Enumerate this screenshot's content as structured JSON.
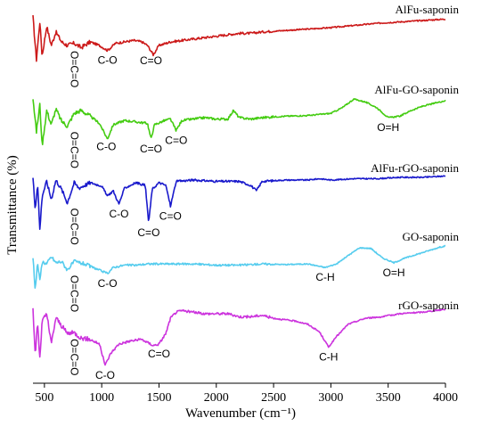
{
  "chart_data": {
    "type": "line",
    "xlabel": "Wavenumber (cm⁻¹)",
    "ylabel": "Transmittance (%)",
    "xlim": [
      400,
      4000
    ],
    "x_ticks": [
      500,
      1000,
      1500,
      2000,
      2500,
      3000,
      3500,
      4000
    ],
    "y_ticks": "none",
    "series": [
      {
        "name": "AlFu-saponin",
        "color": "#cc1a1a",
        "points": [
          [
            400,
            95
          ],
          [
            430,
            35
          ],
          [
            460,
            88
          ],
          [
            480,
            40
          ],
          [
            520,
            82
          ],
          [
            560,
            55
          ],
          [
            600,
            74
          ],
          [
            650,
            60
          ],
          [
            700,
            55
          ],
          [
            760,
            58
          ],
          [
            820,
            52
          ],
          [
            900,
            60
          ],
          [
            980,
            55
          ],
          [
            1050,
            48
          ],
          [
            1080,
            52
          ],
          [
            1120,
            58
          ],
          [
            1200,
            60
          ],
          [
            1280,
            62
          ],
          [
            1350,
            60
          ],
          [
            1400,
            55
          ],
          [
            1450,
            42
          ],
          [
            1500,
            55
          ],
          [
            1600,
            60
          ],
          [
            1700,
            62
          ],
          [
            1800,
            64
          ],
          [
            1900,
            66
          ],
          [
            2000,
            68
          ],
          [
            2100,
            70
          ],
          [
            2200,
            72
          ],
          [
            2300,
            72
          ],
          [
            2400,
            74
          ],
          [
            2600,
            76
          ],
          [
            2800,
            78
          ],
          [
            3000,
            80
          ],
          [
            3200,
            83
          ],
          [
            3400,
            86
          ],
          [
            3600,
            88
          ],
          [
            3800,
            90
          ],
          [
            4000,
            92
          ]
        ]
      },
      {
        "name": "AlFu-GO-saponin",
        "color": "#44cc11",
        "points": [
          [
            400,
            88
          ],
          [
            430,
            40
          ],
          [
            460,
            78
          ],
          [
            480,
            20
          ],
          [
            520,
            70
          ],
          [
            560,
            50
          ],
          [
            600,
            72
          ],
          [
            650,
            55
          ],
          [
            700,
            48
          ],
          [
            760,
            66
          ],
          [
            820,
            70
          ],
          [
            900,
            62
          ],
          [
            980,
            52
          ],
          [
            1050,
            30
          ],
          [
            1100,
            50
          ],
          [
            1200,
            56
          ],
          [
            1300,
            54
          ],
          [
            1400,
            52
          ],
          [
            1430,
            30
          ],
          [
            1460,
            50
          ],
          [
            1550,
            56
          ],
          [
            1600,
            58
          ],
          [
            1650,
            42
          ],
          [
            1700,
            56
          ],
          [
            1800,
            58
          ],
          [
            1900,
            60
          ],
          [
            2000,
            58
          ],
          [
            2100,
            58
          ],
          [
            2150,
            70
          ],
          [
            2200,
            60
          ],
          [
            2300,
            58
          ],
          [
            2400,
            60
          ],
          [
            2600,
            62
          ],
          [
            2800,
            63
          ],
          [
            3000,
            66
          ],
          [
            3100,
            74
          ],
          [
            3200,
            86
          ],
          [
            3300,
            82
          ],
          [
            3400,
            74
          ],
          [
            3500,
            60
          ],
          [
            3600,
            62
          ],
          [
            3700,
            70
          ],
          [
            3800,
            76
          ],
          [
            3900,
            80
          ],
          [
            4000,
            84
          ]
        ]
      },
      {
        "name": "AlFu-rGO-saponin",
        "color": "#1a1acc",
        "points": [
          [
            400,
            88
          ],
          [
            420,
            40
          ],
          [
            440,
            80
          ],
          [
            460,
            10
          ],
          [
            480,
            60
          ],
          [
            520,
            82
          ],
          [
            560,
            55
          ],
          [
            600,
            84
          ],
          [
            650,
            70
          ],
          [
            700,
            50
          ],
          [
            760,
            80
          ],
          [
            800,
            72
          ],
          [
            900,
            80
          ],
          [
            1000,
            75
          ],
          [
            1050,
            60
          ],
          [
            1100,
            68
          ],
          [
            1150,
            48
          ],
          [
            1200,
            72
          ],
          [
            1300,
            80
          ],
          [
            1380,
            76
          ],
          [
            1410,
            20
          ],
          [
            1440,
            70
          ],
          [
            1500,
            80
          ],
          [
            1560,
            76
          ],
          [
            1600,
            45
          ],
          [
            1650,
            82
          ],
          [
            1800,
            84
          ],
          [
            2000,
            82
          ],
          [
            2200,
            82
          ],
          [
            2300,
            76
          ],
          [
            2350,
            68
          ],
          [
            2400,
            82
          ],
          [
            2600,
            84
          ],
          [
            2800,
            84
          ],
          [
            2900,
            86
          ],
          [
            3000,
            84
          ],
          [
            3200,
            86
          ],
          [
            3400,
            86
          ],
          [
            3600,
            88
          ],
          [
            3800,
            88
          ],
          [
            4000,
            90
          ]
        ]
      },
      {
        "name": "GO-saponin",
        "color": "#55ccee",
        "points": [
          [
            400,
            70
          ],
          [
            420,
            15
          ],
          [
            440,
            60
          ],
          [
            460,
            30
          ],
          [
            480,
            62
          ],
          [
            520,
            58
          ],
          [
            560,
            70
          ],
          [
            600,
            60
          ],
          [
            650,
            62
          ],
          [
            700,
            48
          ],
          [
            760,
            62
          ],
          [
            850,
            58
          ],
          [
            950,
            50
          ],
          [
            1050,
            42
          ],
          [
            1100,
            52
          ],
          [
            1200,
            56
          ],
          [
            1300,
            56
          ],
          [
            1400,
            58
          ],
          [
            1600,
            58
          ],
          [
            1800,
            58
          ],
          [
            2000,
            56
          ],
          [
            2200,
            56
          ],
          [
            2400,
            58
          ],
          [
            2600,
            57
          ],
          [
            2800,
            58
          ],
          [
            2950,
            52
          ],
          [
            3050,
            58
          ],
          [
            3150,
            72
          ],
          [
            3250,
            85
          ],
          [
            3350,
            84
          ],
          [
            3450,
            68
          ],
          [
            3550,
            60
          ],
          [
            3650,
            68
          ],
          [
            3750,
            74
          ],
          [
            3850,
            80
          ],
          [
            3950,
            86
          ],
          [
            4000,
            88
          ]
        ]
      },
      {
        "name": "rGO-saponin",
        "color": "#cc33dd",
        "points": [
          [
            400,
            85
          ],
          [
            420,
            25
          ],
          [
            440,
            70
          ],
          [
            460,
            20
          ],
          [
            480,
            70
          ],
          [
            520,
            80
          ],
          [
            560,
            40
          ],
          [
            600,
            75
          ],
          [
            650,
            64
          ],
          [
            700,
            54
          ],
          [
            760,
            55
          ],
          [
            820,
            48
          ],
          [
            900,
            46
          ],
          [
            980,
            40
          ],
          [
            1030,
            12
          ],
          [
            1080,
            28
          ],
          [
            1150,
            40
          ],
          [
            1250,
            44
          ],
          [
            1350,
            46
          ],
          [
            1450,
            38
          ],
          [
            1500,
            40
          ],
          [
            1560,
            54
          ],
          [
            1600,
            74
          ],
          [
            1650,
            82
          ],
          [
            1700,
            84
          ],
          [
            1800,
            82
          ],
          [
            1900,
            80
          ],
          [
            2000,
            80
          ],
          [
            2100,
            80
          ],
          [
            2200,
            76
          ],
          [
            2300,
            76
          ],
          [
            2400,
            78
          ],
          [
            2500,
            74
          ],
          [
            2600,
            72
          ],
          [
            2700,
            70
          ],
          [
            2800,
            66
          ],
          [
            2900,
            56
          ],
          [
            2980,
            36
          ],
          [
            3050,
            50
          ],
          [
            3150,
            66
          ],
          [
            3300,
            74
          ],
          [
            3450,
            76
          ],
          [
            3600,
            80
          ],
          [
            3800,
            82
          ],
          [
            4000,
            86
          ]
        ]
      }
    ],
    "annotations": [
      {
        "text": "O=C=O",
        "series": 0,
        "x": 700
      },
      {
        "text": "C-O",
        "series": 0,
        "x": 1050
      },
      {
        "text": "C=O",
        "series": 0,
        "x": 1430
      },
      {
        "text": "O=C=O",
        "series": 1,
        "x": 700
      },
      {
        "text": "C-O",
        "series": 1,
        "x": 1040
      },
      {
        "text": "C=O",
        "series": 1,
        "x": 1430
      },
      {
        "text": "C=O",
        "series": 1,
        "x": 1650
      },
      {
        "text": "O=H",
        "series": 1,
        "x": 3500
      },
      {
        "text": "O=C=O",
        "series": 2,
        "x": 700
      },
      {
        "text": "C-O",
        "series": 2,
        "x": 1150
      },
      {
        "text": "C=O",
        "series": 2,
        "x": 1410
      },
      {
        "text": "C=O",
        "series": 2,
        "x": 1600
      },
      {
        "text": "O=C=O",
        "series": 3,
        "x": 700
      },
      {
        "text": "C-O",
        "series": 3,
        "x": 1050
      },
      {
        "text": "C-H",
        "series": 3,
        "x": 2950
      },
      {
        "text": "O=H",
        "series": 3,
        "x": 3550
      },
      {
        "text": "O=C=O",
        "series": 4,
        "x": 700
      },
      {
        "text": "C-O",
        "series": 4,
        "x": 1030
      },
      {
        "text": "C=O",
        "series": 4,
        "x": 1500
      },
      {
        "text": "C-H",
        "series": 4,
        "x": 2980
      }
    ]
  }
}
